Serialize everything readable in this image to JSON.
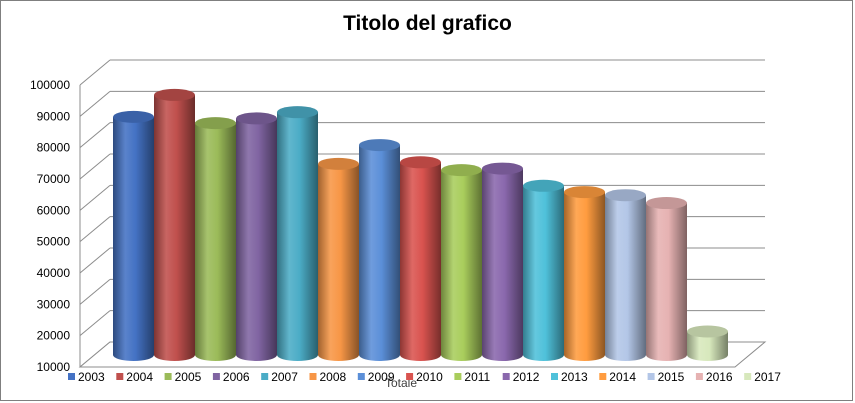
{
  "chart_data": {
    "type": "bar",
    "title": "Titolo del grafico",
    "categories": [
      "Totale"
    ],
    "ylim": [
      10000,
      100000
    ],
    "yticks": [
      10000,
      20000,
      30000,
      40000,
      50000,
      60000,
      70000,
      80000,
      90000,
      100000
    ],
    "grid": true,
    "legend_position": "bottom",
    "series": [
      {
        "name": "2003",
        "values": [
          86000
        ],
        "color": "#4472c4"
      },
      {
        "name": "2004",
        "values": [
          93000
        ],
        "color": "#c0504d"
      },
      {
        "name": "2005",
        "values": [
          84000
        ],
        "color": "#9bbb59"
      },
      {
        "name": "2006",
        "values": [
          85500
        ],
        "color": "#8064a2"
      },
      {
        "name": "2007",
        "values": [
          87500
        ],
        "color": "#4bacc6"
      },
      {
        "name": "2008",
        "values": [
          71000
        ],
        "color": "#f79646"
      },
      {
        "name": "2009",
        "values": [
          77000
        ],
        "color": "#5b8fd8"
      },
      {
        "name": "2010",
        "values": [
          71500
        ],
        "color": "#d9534f"
      },
      {
        "name": "2011",
        "values": [
          69000
        ],
        "color": "#a9cd5c"
      },
      {
        "name": "2012",
        "values": [
          69500
        ],
        "color": "#8a68ad"
      },
      {
        "name": "2013",
        "values": [
          64000
        ],
        "color": "#4fc1da"
      },
      {
        "name": "2014",
        "values": [
          62000
        ],
        "color": "#ff9c3f"
      },
      {
        "name": "2015",
        "values": [
          61000
        ],
        "color": "#b3c6e7"
      },
      {
        "name": "2016",
        "values": [
          58500
        ],
        "color": "#e6b2b2"
      },
      {
        "name": "2017",
        "values": [
          17500
        ],
        "color": "#d7e8bc"
      }
    ]
  }
}
